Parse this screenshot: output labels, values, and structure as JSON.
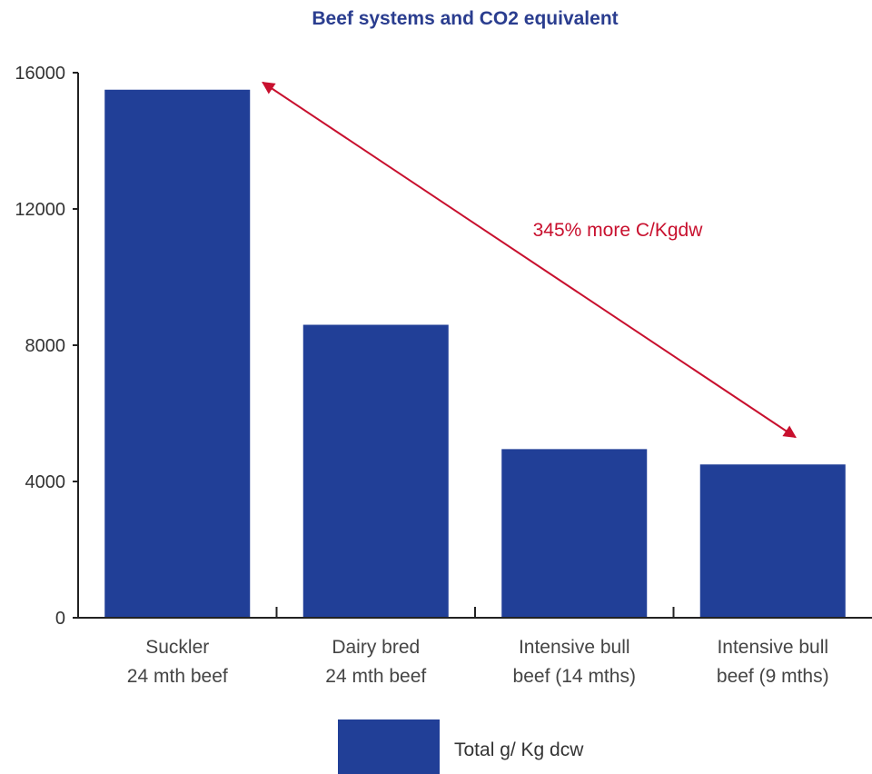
{
  "chart_data": {
    "type": "bar",
    "title": "Beef systems and CO2 equivalent",
    "categories": [
      [
        "Suckler",
        "24 mth beef"
      ],
      [
        "Dairy bred",
        "24 mth beef"
      ],
      [
        "Intensive bull",
        "beef (14 mths)"
      ],
      [
        "Intensive bull",
        "beef (9 mths)"
      ]
    ],
    "series": [
      {
        "name": "Total g/ Kg dcw",
        "values": [
          15500,
          8600,
          4950,
          4500
        ],
        "color": "#213f97"
      }
    ],
    "yticks": [
      "0",
      "4000",
      "8000",
      "12000",
      "16000"
    ],
    "ylim": [
      0,
      16000
    ],
    "grid": false,
    "legend_position": "bottom",
    "annotation": {
      "text": "345% more C/Kgdw",
      "color": "#c8102e",
      "arrow_from_category": 0,
      "arrow_to_category": 3
    }
  }
}
